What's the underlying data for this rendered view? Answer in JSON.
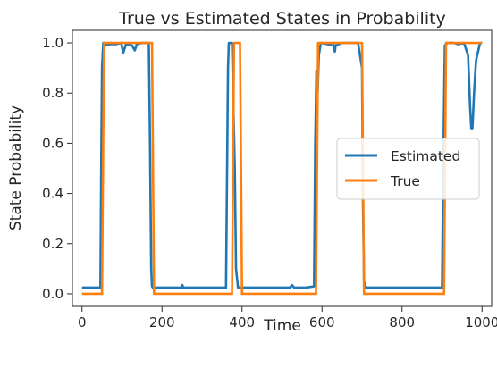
{
  "chart_data": {
    "type": "line",
    "title": "True vs Estimated States in Probability",
    "xlabel": "Time",
    "ylabel": "State Probability",
    "xlim": [
      -24,
      1024
    ],
    "ylim": [
      -0.05,
      1.05
    ],
    "xticks": [
      0,
      200,
      400,
      600,
      800,
      1000
    ],
    "yticks": [
      0.0,
      0.2,
      0.4,
      0.6,
      0.8,
      1.0
    ],
    "xtick_labels": [
      "0",
      "200",
      "400",
      "600",
      "800",
      "1000"
    ],
    "ytick_labels": [
      "0.0",
      "0.2",
      "0.4",
      "0.6",
      "0.8",
      "1.0"
    ],
    "grid": false,
    "legend_position": "center-right",
    "series": [
      {
        "name": "Estimated",
        "color": "#1f77b4",
        "x": [
          0,
          46,
          48,
          50,
          53,
          56,
          60,
          70,
          85,
          98,
          103,
          110,
          125,
          132,
          137,
          150,
          167,
          170,
          173,
          175,
          177,
          200,
          250,
          251,
          253,
          255,
          300,
          360,
          365,
          367,
          375,
          377,
          382,
          385,
          390,
          400,
          500,
          520,
          525,
          530,
          560,
          580,
          583,
          586,
          589,
          592,
          597,
          630,
          632,
          634,
          650,
          690,
          700,
          702,
          705,
          710,
          900,
          903,
          907,
          913,
          930,
          940,
          955,
          965,
          970,
          973,
          976,
          980,
          985,
          995,
          1000
        ],
        "y": [
          0.025,
          0.025,
          0.5,
          0.9,
          1.0,
          1.0,
          0.99,
          0.995,
          0.995,
          1.0,
          0.96,
          0.995,
          0.99,
          0.97,
          0.995,
          1.0,
          1.0,
          0.6,
          0.1,
          0.03,
          0.025,
          0.025,
          0.025,
          0.035,
          0.025,
          0.025,
          0.025,
          0.025,
          0.9,
          1.0,
          1.0,
          0.85,
          0.5,
          0.1,
          0.025,
          0.025,
          0.025,
          0.025,
          0.035,
          0.025,
          0.025,
          0.03,
          0.6,
          0.89,
          0.8,
          0.95,
          1.0,
          0.99,
          0.965,
          0.99,
          1.0,
          1.0,
          0.9,
          0.4,
          0.05,
          0.025,
          0.025,
          0.5,
          0.99,
          1.0,
          1.0,
          0.995,
          1.0,
          0.95,
          0.75,
          0.66,
          0.66,
          0.8,
          0.93,
          1.0,
          1.0
        ]
      },
      {
        "name": "True",
        "color": "#ff7f0e",
        "x": [
          0,
          50,
          55,
          175,
          180,
          375,
          380,
          395,
          400,
          585,
          590,
          700,
          705,
          905,
          910,
          1000
        ],
        "y": [
          0,
          0,
          1,
          1,
          0,
          0,
          1,
          1,
          0,
          0,
          1,
          1,
          0,
          0,
          1,
          1
        ]
      }
    ]
  }
}
